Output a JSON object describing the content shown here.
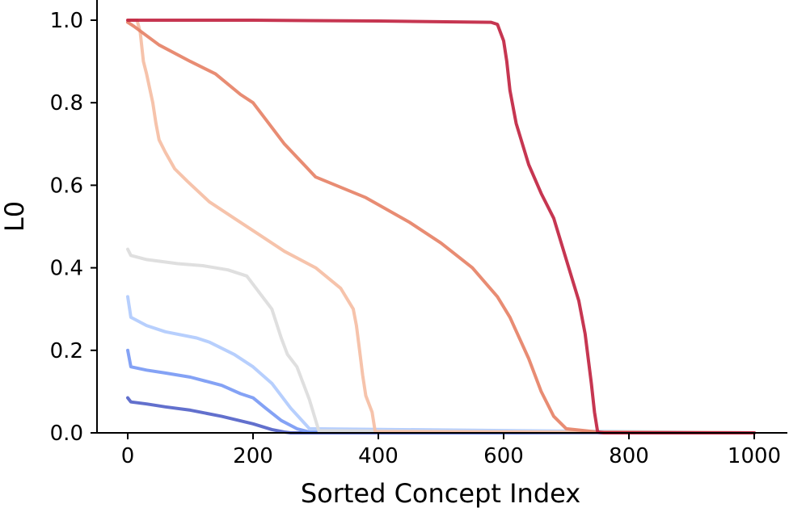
{
  "chart_data": {
    "type": "line",
    "title": "",
    "xlabel": "Sorted Concept Index",
    "ylabel": "L0",
    "xlim": [
      -48,
      1050
    ],
    "ylim": [
      0,
      1.04
    ],
    "xticks": [
      "0",
      "200",
      "400",
      "600",
      "800",
      "1000"
    ],
    "yticks": [
      "0.0",
      "0.2",
      "0.4",
      "0.6",
      "0.8",
      "1.0"
    ],
    "grid": false,
    "legend": "none",
    "series": [
      {
        "color": "#3b4cc0",
        "opacity": 0.8,
        "x": [
          0,
          5,
          30,
          60,
          100,
          150,
          200,
          230,
          250,
          260,
          1000
        ],
        "y": [
          0.085,
          0.075,
          0.07,
          0.063,
          0.055,
          0.04,
          0.022,
          0.008,
          0.002,
          0,
          0
        ]
      },
      {
        "color": "#6f92f3",
        "opacity": 0.85,
        "x": [
          0,
          5,
          30,
          60,
          100,
          150,
          180,
          200,
          220,
          245,
          270,
          290,
          1000
        ],
        "y": [
          0.2,
          0.16,
          0.152,
          0.145,
          0.135,
          0.115,
          0.095,
          0.085,
          0.06,
          0.03,
          0.01,
          0.002,
          0
        ]
      },
      {
        "color": "#aac7fd",
        "opacity": 0.85,
        "x": [
          0,
          5,
          30,
          60,
          110,
          130,
          170,
          200,
          230,
          260,
          290,
          1000
        ],
        "y": [
          0.33,
          0.28,
          0.26,
          0.245,
          0.23,
          0.22,
          0.19,
          0.16,
          0.12,
          0.06,
          0.01,
          0
        ]
      },
      {
        "color": "#dddddd",
        "opacity": 0.95,
        "x": [
          0,
          5,
          30,
          80,
          120,
          160,
          190,
          210,
          230,
          245,
          255,
          270,
          290,
          305,
          1000
        ],
        "y": [
          0.445,
          0.43,
          0.42,
          0.41,
          0.405,
          0.395,
          0.38,
          0.34,
          0.3,
          0.23,
          0.19,
          0.16,
          0.08,
          0.005,
          0
        ]
      },
      {
        "color": "#f5c0a7",
        "opacity": 0.95,
        "x": [
          0,
          10,
          15,
          20,
          25,
          30,
          40,
          45,
          50,
          60,
          75,
          95,
          130,
          170,
          210,
          250,
          300,
          340,
          360,
          365,
          370,
          375,
          380,
          390,
          395,
          1000
        ],
        "y": [
          1.0,
          1.0,
          1.0,
          0.97,
          0.9,
          0.87,
          0.8,
          0.75,
          0.71,
          0.68,
          0.64,
          0.61,
          0.56,
          0.52,
          0.48,
          0.44,
          0.4,
          0.35,
          0.3,
          0.26,
          0.2,
          0.14,
          0.09,
          0.05,
          0.003,
          0
        ]
      },
      {
        "color": "#e7866c",
        "opacity": 0.95,
        "x": [
          0,
          10,
          50,
          100,
          140,
          180,
          200,
          220,
          250,
          300,
          380,
          450,
          500,
          550,
          590,
          610,
          640,
          660,
          680,
          700,
          750,
          1000
        ],
        "y": [
          0.995,
          0.985,
          0.94,
          0.9,
          0.87,
          0.82,
          0.8,
          0.76,
          0.7,
          0.62,
          0.57,
          0.51,
          0.46,
          0.4,
          0.33,
          0.28,
          0.18,
          0.1,
          0.04,
          0.01,
          0.002,
          0
        ]
      },
      {
        "color": "#c0203e",
        "opacity": 0.9,
        "x": [
          0,
          200,
          400,
          580,
          590,
          600,
          605,
          610,
          620,
          640,
          660,
          680,
          700,
          720,
          730,
          740,
          745,
          750,
          760,
          1000
        ],
        "y": [
          1.0,
          1.0,
          0.998,
          0.995,
          0.99,
          0.95,
          0.9,
          0.83,
          0.75,
          0.65,
          0.58,
          0.52,
          0.42,
          0.32,
          0.24,
          0.12,
          0.05,
          0.002,
          0,
          0
        ]
      }
    ]
  }
}
